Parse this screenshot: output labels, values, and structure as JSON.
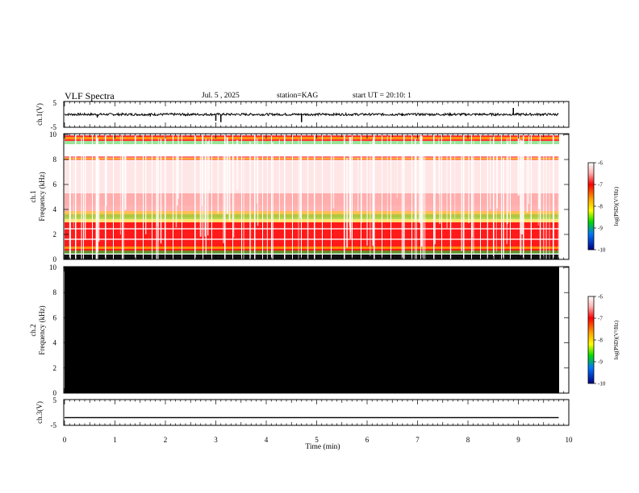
{
  "header": {
    "title": "VLF Spectra",
    "date": "Jul. 5 , 2025",
    "station": "station=KAG",
    "start": "start UT = 20:10: 1"
  },
  "chart_data": [
    {
      "type": "line",
      "panel": "ch1-waveform",
      "ylabel": "ch.1(V)",
      "ylim": [
        -5,
        5
      ],
      "yticks": [
        "5",
        "-5"
      ],
      "x": [
        0,
        0.5,
        0.65,
        1.0,
        1.7,
        2.4,
        3.0,
        3.1,
        3.6,
        4.7,
        5.2,
        6.1,
        6.7,
        7.2,
        8.2,
        8.9,
        9.8
      ],
      "y": [
        0,
        -0.4,
        -1.2,
        0.2,
        -0.8,
        -0.7,
        -2.5,
        -3.0,
        0.3,
        -3.0,
        0.1,
        -0.4,
        -0.6,
        0.2,
        -0.4,
        2.5,
        0
      ]
    },
    {
      "type": "heatmap",
      "panel": "ch1-spectrogram",
      "ylabel": "ch.1\nFrequency (kHz)",
      "ylim": [
        0,
        10
      ],
      "yticks": [
        "0",
        "2",
        "4",
        "6",
        "8",
        "10"
      ],
      "colorbar": {
        "label": "log(PSD)(V²/Hz)",
        "range": [
          -10,
          -6
        ],
        "ticks": [
          "-6",
          "-7",
          "-8",
          "-9",
          "-10"
        ]
      }
    },
    {
      "type": "heatmap",
      "panel": "ch2-spectrogram",
      "ylabel": "ch.2\nFrequency (kHz)",
      "ylim": [
        0,
        10
      ],
      "yticks": [
        "0",
        "2",
        "4",
        "6",
        "8",
        "10"
      ],
      "fill": "black",
      "colorbar": {
        "label": "log(PSD)(V²/Hz)",
        "range": [
          -10,
          -6
        ],
        "ticks": [
          "-6",
          "-7",
          "-8",
          "-9",
          "-10"
        ]
      }
    },
    {
      "type": "line",
      "panel": "ch3-waveform",
      "ylabel": "ch.3(V)",
      "ylim": [
        -5,
        5
      ],
      "yticks": [
        "5",
        "-5"
      ],
      "x": [
        0,
        9.8
      ],
      "y": [
        -2,
        -2
      ]
    }
  ],
  "xaxis": {
    "label": "Time (min)",
    "ticks": [
      "0",
      "1",
      "2",
      "3",
      "4",
      "5",
      "6",
      "7",
      "8",
      "9",
      "10"
    ],
    "xlim": [
      0,
      10
    ]
  },
  "colors": {
    "spectrum_bg": "#ffffff",
    "spectrum_high": "#ff0000",
    "spectrum_mid": "#ffcc00",
    "spectrum_low": "#22cc22",
    "ch2_fill": "#000000"
  }
}
